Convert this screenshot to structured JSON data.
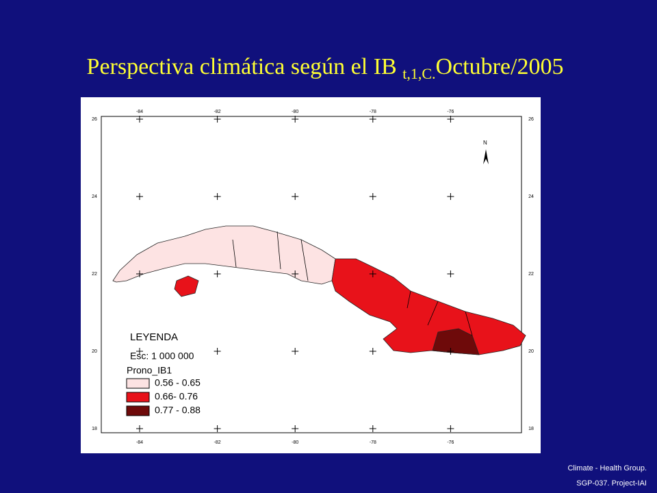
{
  "header": {
    "title": "Perspectiva climática según el IB",
    "subscript": "t,1,C.",
    "date": "Octubre/2005"
  },
  "map": {
    "lon_ticks": [
      -84,
      -82,
      -80,
      -78,
      -76
    ],
    "lat_ticks": [
      26,
      24,
      22,
      20,
      18
    ],
    "north": "N",
    "legend": {
      "title": "LEYENDA",
      "scale": "Esc: 1 000 000",
      "field": "Prono_IB1",
      "classes": [
        {
          "label": "0.56 - 0.65",
          "color": "#fde3e3"
        },
        {
          "label": "0.66- 0.76",
          "color": "#e8121a"
        },
        {
          "label": "0.77 - 0.88",
          "color": "#6e0a0a"
        }
      ]
    }
  },
  "footer": {
    "line1": "Climate - Health Group.",
    "line2": "SGP-037. Project-IAI"
  }
}
